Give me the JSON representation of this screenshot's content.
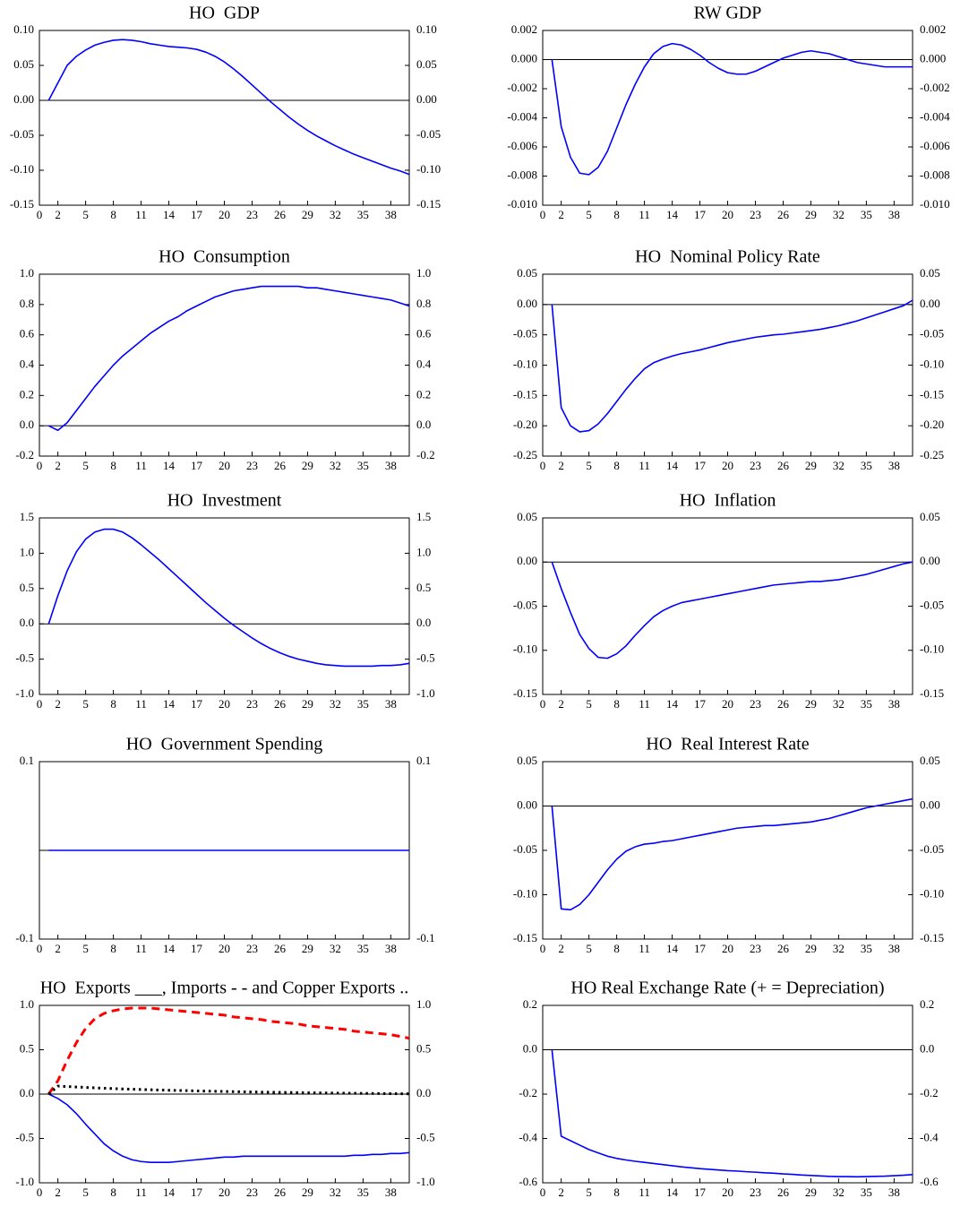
{
  "chart_data": [
    {
      "type": "line",
      "title": "HO  GDP",
      "zero_line": true,
      "color": "#0000ff",
      "x": [
        1,
        2,
        3,
        4,
        5,
        6,
        7,
        8,
        9,
        10,
        11,
        12,
        13,
        14,
        15,
        16,
        17,
        18,
        19,
        20,
        21,
        22,
        23,
        24,
        25,
        26,
        27,
        28,
        29,
        30,
        31,
        32,
        33,
        34,
        35,
        36,
        37,
        38,
        39,
        40
      ],
      "values": [
        0,
        0.025,
        0.05,
        0.063,
        0.072,
        0.079,
        0.083,
        0.086,
        0.087,
        0.086,
        0.084,
        0.081,
        0.079,
        0.077,
        0.076,
        0.075,
        0.073,
        0.069,
        0.063,
        0.055,
        0.045,
        0.034,
        0.022,
        0.01,
        -0.002,
        -0.013,
        -0.024,
        -0.034,
        -0.043,
        -0.051,
        -0.058,
        -0.065,
        -0.071,
        -0.077,
        -0.082,
        -0.087,
        -0.092,
        -0.097,
        -0.101,
        -0.106
      ],
      "xlim": [
        0,
        40
      ],
      "xticks": [
        0,
        2,
        5,
        8,
        11,
        14,
        17,
        20,
        23,
        26,
        29,
        32,
        35,
        38
      ],
      "ylim": [
        -0.15,
        0.1
      ],
      "yticks": [
        -0.15,
        {
          "value": -0.1,
          "label": "-0.10"
        },
        -0.05,
        {
          "value": 0,
          "label": "0.00"
        },
        0.05,
        {
          "value": 0.1,
          "label": "0.10"
        }
      ]
    },
    {
      "type": "line",
      "title": "RW GDP",
      "zero_line": true,
      "color": "#0000ff",
      "x": [
        1,
        2,
        3,
        4,
        5,
        6,
        7,
        8,
        9,
        10,
        11,
        12,
        13,
        14,
        15,
        16,
        17,
        18,
        19,
        20,
        21,
        22,
        23,
        24,
        25,
        26,
        27,
        28,
        29,
        30,
        31,
        32,
        33,
        34,
        35,
        36,
        37,
        38,
        39,
        40
      ],
      "values": [
        0,
        -0.0046,
        -0.0067,
        -0.0078,
        -0.0079,
        -0.0074,
        -0.0063,
        -0.0047,
        -0.0031,
        -0.0017,
        -0.0005,
        0.0004,
        0.0009,
        0.0011,
        0.001,
        0.0007,
        0.0003,
        -0.0002,
        -0.0006,
        -0.0009,
        -0.001,
        -0.001,
        -0.0008,
        -0.0005,
        -0.0002,
        0.0001,
        0.0003,
        0.0005,
        0.0006,
        0.0005,
        0.0004,
        0.0002,
        0,
        -0.0002,
        -0.0003,
        -0.0004,
        -0.0005,
        -0.0005,
        -0.0005,
        -0.0005
      ],
      "xlim": [
        0,
        40
      ],
      "xticks": [
        0,
        2,
        5,
        8,
        11,
        14,
        17,
        20,
        23,
        26,
        29,
        32,
        35,
        38
      ],
      "ylim": [
        -0.01,
        0.002
      ],
      "yticks": [
        {
          "value": -0.01,
          "label": "-0.010"
        },
        -0.008,
        -0.006,
        -0.004,
        -0.002,
        {
          "value": 0,
          "label": "0.000"
        },
        0.002
      ]
    },
    {
      "type": "line",
      "title": "HO  Consumption",
      "zero_line": true,
      "color": "#0000ff",
      "x": [
        1,
        2,
        3,
        4,
        5,
        6,
        7,
        8,
        9,
        10,
        11,
        12,
        13,
        14,
        15,
        16,
        17,
        18,
        19,
        20,
        21,
        22,
        23,
        24,
        25,
        26,
        27,
        28,
        29,
        30,
        31,
        32,
        33,
        34,
        35,
        36,
        37,
        38,
        39,
        40
      ],
      "values": [
        0,
        -0.03,
        0.02,
        0.1,
        0.18,
        0.26,
        0.33,
        0.4,
        0.46,
        0.51,
        0.56,
        0.61,
        0.65,
        0.69,
        0.72,
        0.76,
        0.79,
        0.82,
        0.85,
        0.87,
        0.89,
        0.9,
        0.91,
        0.92,
        0.92,
        0.92,
        0.92,
        0.92,
        0.91,
        0.91,
        0.9,
        0.89,
        0.88,
        0.87,
        0.86,
        0.85,
        0.84,
        0.83,
        0.81,
        0.79
      ],
      "xlim": [
        0,
        40
      ],
      "xticks": [
        0,
        2,
        5,
        8,
        11,
        14,
        17,
        20,
        23,
        26,
        29,
        32,
        35,
        38
      ],
      "ylim": [
        -0.2,
        1
      ],
      "yticks": [
        -0.2,
        {
          "value": 0,
          "label": "0.0"
        },
        0.2,
        0.4,
        0.6,
        0.8,
        {
          "value": 1,
          "label": "1.0"
        }
      ]
    },
    {
      "type": "line",
      "title": "HO  Nominal Policy Rate",
      "zero_line": true,
      "color": "#0000ff",
      "x": [
        1,
        2,
        3,
        4,
        5,
        6,
        7,
        8,
        9,
        10,
        11,
        12,
        13,
        14,
        15,
        16,
        17,
        18,
        19,
        20,
        21,
        22,
        23,
        24,
        25,
        26,
        27,
        28,
        29,
        30,
        31,
        32,
        33,
        34,
        35,
        36,
        37,
        38,
        39,
        40
      ],
      "values": [
        0,
        -0.17,
        -0.2,
        -0.21,
        -0.208,
        -0.197,
        -0.18,
        -0.16,
        -0.14,
        -0.122,
        -0.106,
        -0.096,
        -0.09,
        -0.085,
        -0.081,
        -0.078,
        -0.075,
        -0.071,
        -0.067,
        -0.063,
        -0.06,
        -0.057,
        -0.054,
        -0.052,
        -0.05,
        -0.049,
        -0.047,
        -0.045,
        -0.043,
        -0.041,
        -0.038,
        -0.035,
        -0.031,
        -0.027,
        -0.022,
        -0.017,
        -0.012,
        -0.007,
        -0.002,
        0.007
      ],
      "xlim": [
        0,
        40
      ],
      "xticks": [
        0,
        2,
        5,
        8,
        11,
        14,
        17,
        20,
        23,
        26,
        29,
        32,
        35,
        38
      ],
      "ylim": [
        -0.25,
        0.05
      ],
      "yticks": [
        -0.25,
        {
          "value": -0.2,
          "label": "-0.20"
        },
        -0.15,
        {
          "value": -0.1,
          "label": "-0.10"
        },
        -0.05,
        {
          "value": 0,
          "label": "0.00"
        },
        0.05
      ]
    },
    {
      "type": "line",
      "title": "HO  Investment",
      "zero_line": true,
      "color": "#0000ff",
      "x": [
        1,
        2,
        3,
        4,
        5,
        6,
        7,
        8,
        9,
        10,
        11,
        12,
        13,
        14,
        15,
        16,
        17,
        18,
        19,
        20,
        21,
        22,
        23,
        24,
        25,
        26,
        27,
        28,
        29,
        30,
        31,
        32,
        33,
        34,
        35,
        36,
        37,
        38,
        39,
        40
      ],
      "values": [
        0,
        0.4,
        0.75,
        1.02,
        1.2,
        1.3,
        1.34,
        1.34,
        1.3,
        1.22,
        1.12,
        1.01,
        0.9,
        0.78,
        0.66,
        0.54,
        0.42,
        0.3,
        0.19,
        0.08,
        -0.02,
        -0.11,
        -0.2,
        -0.28,
        -0.35,
        -0.41,
        -0.46,
        -0.5,
        -0.53,
        -0.56,
        -0.58,
        -0.59,
        -0.6,
        -0.6,
        -0.6,
        -0.6,
        -0.59,
        -0.59,
        -0.58,
        -0.56
      ],
      "xlim": [
        0,
        40
      ],
      "xticks": [
        0,
        2,
        5,
        8,
        11,
        14,
        17,
        20,
        23,
        26,
        29,
        32,
        35,
        38
      ],
      "ylim": [
        -1,
        1.5
      ],
      "yticks": [
        {
          "value": -1,
          "label": "-1.0"
        },
        -0.5,
        {
          "value": 0,
          "label": "0.0"
        },
        0.5,
        {
          "value": 1,
          "label": "1.0"
        },
        1.5
      ]
    },
    {
      "type": "line",
      "title": "HO  Inflation",
      "zero_line": true,
      "color": "#0000ff",
      "x": [
        1,
        2,
        3,
        4,
        5,
        6,
        7,
        8,
        9,
        10,
        11,
        12,
        13,
        14,
        15,
        16,
        17,
        18,
        19,
        20,
        21,
        22,
        23,
        24,
        25,
        26,
        27,
        28,
        29,
        30,
        31,
        32,
        33,
        34,
        35,
        36,
        37,
        38,
        39,
        40
      ],
      "values": [
        0,
        -0.03,
        -0.057,
        -0.082,
        -0.098,
        -0.108,
        -0.109,
        -0.104,
        -0.095,
        -0.083,
        -0.072,
        -0.062,
        -0.055,
        -0.05,
        -0.046,
        -0.044,
        -0.042,
        -0.04,
        -0.038,
        -0.036,
        -0.034,
        -0.032,
        -0.03,
        -0.028,
        -0.026,
        -0.025,
        -0.024,
        -0.023,
        -0.022,
        -0.022,
        -0.021,
        -0.02,
        -0.018,
        -0.016,
        -0.014,
        -0.011,
        -0.008,
        -0.005,
        -0.002,
        0
      ],
      "xlim": [
        0,
        40
      ],
      "xticks": [
        0,
        2,
        5,
        8,
        11,
        14,
        17,
        20,
        23,
        26,
        29,
        32,
        35,
        38
      ],
      "ylim": [
        -0.15,
        0.05
      ],
      "yticks": [
        -0.15,
        {
          "value": -0.1,
          "label": "-0.10"
        },
        -0.05,
        {
          "value": 0,
          "label": "0.00"
        },
        0.05
      ]
    },
    {
      "type": "line",
      "title": "HO  Government Spending",
      "zero_line": true,
      "color": "#0000ff",
      "x": [
        1,
        2,
        3,
        4,
        5,
        6,
        7,
        8,
        9,
        10,
        11,
        12,
        13,
        14,
        15,
        16,
        17,
        18,
        19,
        20,
        21,
        22,
        23,
        24,
        25,
        26,
        27,
        28,
        29,
        30,
        31,
        32,
        33,
        34,
        35,
        36,
        37,
        38,
        39,
        40
      ],
      "values": [
        0,
        0,
        0,
        0,
        0,
        0,
        0,
        0,
        0,
        0,
        0,
        0,
        0,
        0,
        0,
        0,
        0,
        0,
        0,
        0,
        0,
        0,
        0,
        0,
        0,
        0,
        0,
        0,
        0,
        0,
        0,
        0,
        0,
        0,
        0,
        0,
        0,
        0,
        0,
        0
      ],
      "xlim": [
        0,
        40
      ],
      "xticks": [
        0,
        2,
        5,
        8,
        11,
        14,
        17,
        20,
        23,
        26,
        29,
        32,
        35,
        38
      ],
      "ylim": [
        -0.1,
        0.1
      ],
      "yticks": [
        -0.1,
        0.1
      ]
    },
    {
      "type": "line",
      "title": "HO  Real Interest Rate",
      "zero_line": true,
      "color": "#0000ff",
      "x": [
        1,
        2,
        3,
        4,
        5,
        6,
        7,
        8,
        9,
        10,
        11,
        12,
        13,
        14,
        15,
        16,
        17,
        18,
        19,
        20,
        21,
        22,
        23,
        24,
        25,
        26,
        27,
        28,
        29,
        30,
        31,
        32,
        33,
        34,
        35,
        36,
        37,
        38,
        39,
        40
      ],
      "values": [
        0,
        -0.116,
        -0.117,
        -0.111,
        -0.1,
        -0.086,
        -0.072,
        -0.06,
        -0.051,
        -0.046,
        -0.043,
        -0.042,
        -0.04,
        -0.039,
        -0.037,
        -0.035,
        -0.033,
        -0.031,
        -0.029,
        -0.027,
        -0.025,
        -0.024,
        -0.023,
        -0.022,
        -0.022,
        -0.021,
        -0.02,
        -0.019,
        -0.018,
        -0.016,
        -0.014,
        -0.011,
        -0.008,
        -0.005,
        -0.002,
        0,
        0.002,
        0.004,
        0.006,
        0.008
      ],
      "xlim": [
        0,
        40
      ],
      "xticks": [
        0,
        2,
        5,
        8,
        11,
        14,
        17,
        20,
        23,
        26,
        29,
        32,
        35,
        38
      ],
      "ylim": [
        -0.15,
        0.05
      ],
      "yticks": [
        -0.15,
        {
          "value": -0.1,
          "label": "-0.10"
        },
        -0.05,
        {
          "value": 0,
          "label": "0.00"
        },
        0.05
      ]
    },
    {
      "type": "line",
      "title": "HO  Exports ___, Imports - - and Copper Exports ..",
      "zero_line": true,
      "x": [
        1,
        2,
        3,
        4,
        5,
        6,
        7,
        8,
        9,
        10,
        11,
        12,
        13,
        14,
        15,
        16,
        17,
        18,
        19,
        20,
        21,
        22,
        23,
        24,
        25,
        26,
        27,
        28,
        29,
        30,
        31,
        32,
        33,
        34,
        35,
        36,
        37,
        38,
        39,
        40
      ],
      "series": [
        {
          "color": "#0000ff",
          "dash": "solid",
          "values": [
            0,
            -0.05,
            -0.12,
            -0.22,
            -0.34,
            -0.45,
            -0.56,
            -0.64,
            -0.7,
            -0.74,
            -0.76,
            -0.77,
            -0.77,
            -0.77,
            -0.76,
            -0.75,
            -0.74,
            -0.73,
            -0.72,
            -0.71,
            -0.71,
            -0.7,
            -0.7,
            -0.7,
            -0.7,
            -0.7,
            -0.7,
            -0.7,
            -0.7,
            -0.7,
            -0.7,
            -0.7,
            -0.7,
            -0.69,
            -0.69,
            -0.68,
            -0.68,
            -0.67,
            -0.67,
            -0.66
          ]
        },
        {
          "color": "#ff0000",
          "dash": "dashed",
          "values": [
            0,
            0.15,
            0.38,
            0.58,
            0.74,
            0.85,
            0.91,
            0.94,
            0.96,
            0.97,
            0.97,
            0.97,
            0.96,
            0.95,
            0.94,
            0.93,
            0.92,
            0.91,
            0.9,
            0.89,
            0.87,
            0.86,
            0.85,
            0.84,
            0.82,
            0.81,
            0.8,
            0.79,
            0.77,
            0.76,
            0.75,
            0.74,
            0.73,
            0.71,
            0.7,
            0.69,
            0.68,
            0.67,
            0.65,
            0.63
          ]
        },
        {
          "color": "#000000",
          "dash": "dotted",
          "values": [
            0,
            0.09,
            0.085,
            0.08,
            0.075,
            0.07,
            0.066,
            0.062,
            0.058,
            0.055,
            0.052,
            0.049,
            0.046,
            0.043,
            0.041,
            0.039,
            0.036,
            0.034,
            0.032,
            0.03,
            0.028,
            0.026,
            0.024,
            0.022,
            0.021,
            0.019,
            0.018,
            0.016,
            0.015,
            0.013,
            0.012,
            0.011,
            0.01,
            0.009,
            0.008,
            0.007,
            0.006,
            0.005,
            0.004,
            0.003
          ]
        }
      ],
      "xlim": [
        0,
        40
      ],
      "xticks": [
        0,
        2,
        5,
        8,
        11,
        14,
        17,
        20,
        23,
        26,
        29,
        32,
        35,
        38
      ],
      "ylim": [
        -1,
        1
      ],
      "yticks": [
        {
          "value": -1,
          "label": "-1.0"
        },
        -0.5,
        {
          "value": 0,
          "label": "0.0"
        },
        0.5,
        {
          "value": 1,
          "label": "1.0"
        }
      ]
    },
    {
      "type": "line",
      "title": "HO Real Exchange Rate (+ = Depreciation)",
      "zero_line": true,
      "color": "#0000ff",
      "x": [
        1,
        2,
        3,
        4,
        5,
        6,
        7,
        8,
        9,
        10,
        11,
        12,
        13,
        14,
        15,
        16,
        17,
        18,
        19,
        20,
        21,
        22,
        23,
        24,
        25,
        26,
        27,
        28,
        29,
        30,
        31,
        32,
        33,
        34,
        35,
        36,
        37,
        38,
        39,
        40
      ],
      "values": [
        0,
        -0.39,
        -0.41,
        -0.43,
        -0.45,
        -0.465,
        -0.48,
        -0.49,
        -0.497,
        -0.503,
        -0.508,
        -0.513,
        -0.518,
        -0.523,
        -0.528,
        -0.532,
        -0.536,
        -0.539,
        -0.542,
        -0.545,
        -0.547,
        -0.55,
        -0.552,
        -0.555,
        -0.557,
        -0.56,
        -0.562,
        -0.565,
        -0.567,
        -0.569,
        -0.571,
        -0.572,
        -0.572,
        -0.573,
        -0.572,
        -0.571,
        -0.57,
        -0.568,
        -0.566,
        -0.563
      ],
      "xlim": [
        0,
        40
      ],
      "xticks": [
        0,
        2,
        5,
        8,
        11,
        14,
        17,
        20,
        23,
        26,
        29,
        32,
        35,
        38
      ],
      "ylim": [
        -0.6,
        0.2
      ],
      "yticks": [
        -0.6,
        -0.4,
        -0.2,
        {
          "value": 0,
          "label": "0.0"
        },
        0.2
      ]
    }
  ]
}
